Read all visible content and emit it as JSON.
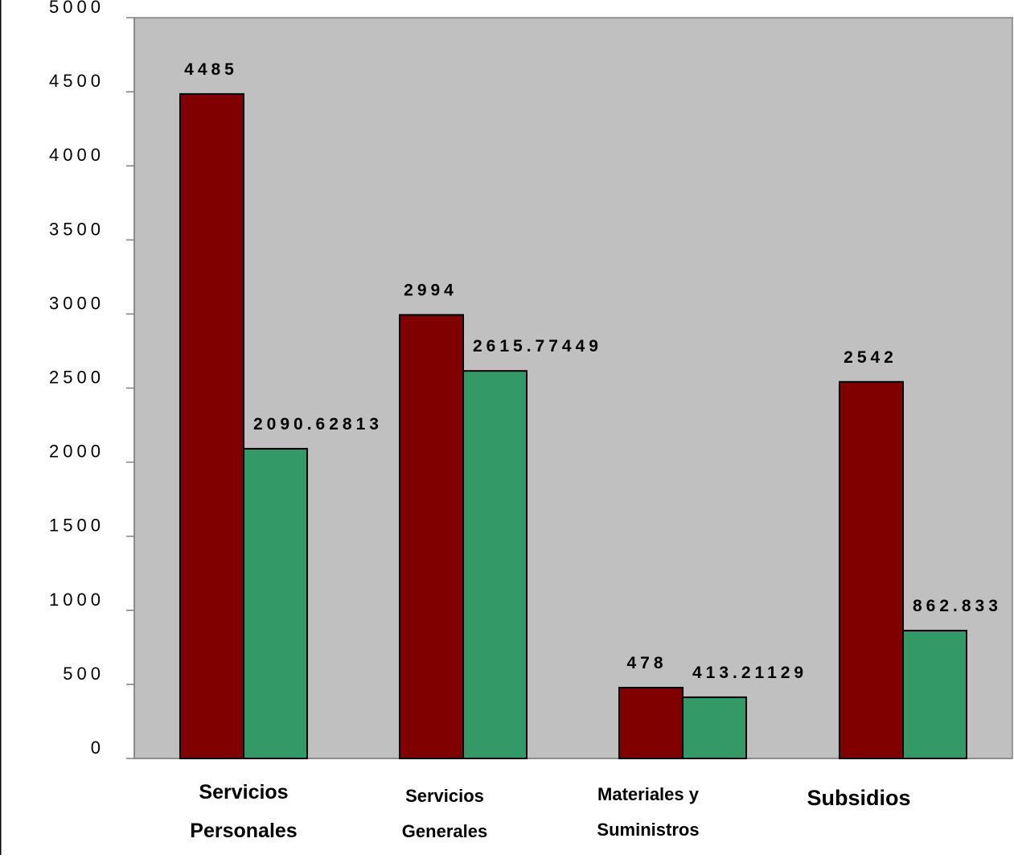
{
  "colors": {
    "plot_background": "#c0c0c0",
    "series_1": "#800000",
    "series_2": "#339966",
    "axis": "#808080",
    "text": "#000000"
  },
  "chart_data": {
    "type": "bar",
    "title": "",
    "xlabel": "",
    "ylabel": "",
    "categories": [
      [
        "Servicios",
        "Personales"
      ],
      [
        "Servicios",
        "Generales"
      ],
      [
        "Materiales y",
        "Suministros"
      ],
      [
        "Subsidios"
      ]
    ],
    "series": [
      {
        "values": [
          4485,
          2994,
          478,
          2542
        ],
        "labels": [
          "4485",
          "2994",
          "478",
          "2542"
        ]
      },
      {
        "values": [
          2090.62813,
          2615.77449,
          413.21129,
          862.833
        ],
        "labels": [
          "2090.62813",
          "2615.77449",
          "413.21129",
          "862.833"
        ]
      }
    ],
    "ylim": [
      0,
      5000
    ],
    "yticks": [
      0,
      500,
      1000,
      1500,
      2000,
      2500,
      3000,
      3500,
      4000,
      4500,
      5000
    ],
    "ytick_labels": [
      "0",
      "500",
      "1000",
      "1500",
      "2000",
      "2500",
      "3000",
      "3500",
      "4000",
      "4500",
      "5000"
    ],
    "grid": false,
    "legend": "none"
  }
}
